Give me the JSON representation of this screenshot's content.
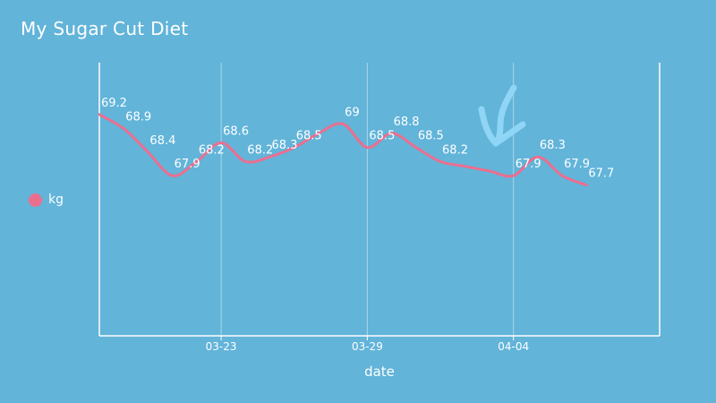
{
  "title": "My Sugar Cut Diet",
  "legend": {
    "label": "kg"
  },
  "colors": {
    "background": "#62b4d9",
    "line": "#ec6e8f",
    "axis": "#ffffff",
    "grid": "#a9d6ea",
    "arrow": "#8fd5f5"
  },
  "chart_data": {
    "type": "line",
    "title": "My Sugar Cut Diet",
    "xlabel": "date",
    "ylabel": "",
    "x_type": "date",
    "x": [
      "03-18",
      "03-19",
      "03-20",
      "03-21",
      "03-22",
      "03-23",
      "03-24",
      "03-25",
      "03-26",
      "03-27",
      "03-28",
      "03-29",
      "03-30",
      "03-31",
      "04-01",
      "04-02",
      "04-03",
      "04-04",
      "04-05",
      "04-06",
      "04-07"
    ],
    "series": [
      {
        "name": "kg",
        "values": [
          69.2,
          68.9,
          68.4,
          67.9,
          68.2,
          68.6,
          68.2,
          68.3,
          68.5,
          68.8,
          69,
          68.5,
          68.8,
          68.5,
          68.2,
          68.1,
          68.0,
          67.9,
          68.3,
          67.9,
          67.7
        ]
      }
    ],
    "labeled_points": [
      0,
      1,
      2,
      3,
      4,
      5,
      6,
      7,
      8,
      10,
      11,
      12,
      13,
      14,
      17,
      18,
      19,
      20
    ],
    "xticks": [
      "03-23",
      "03-29",
      "04-04"
    ],
    "ylim": [
      64.5,
      70.3
    ],
    "x_range": [
      "03-18",
      "04-10"
    ],
    "grid": "vertical",
    "legend_position": "left",
    "annotation": "hand-drawn-arrow"
  }
}
